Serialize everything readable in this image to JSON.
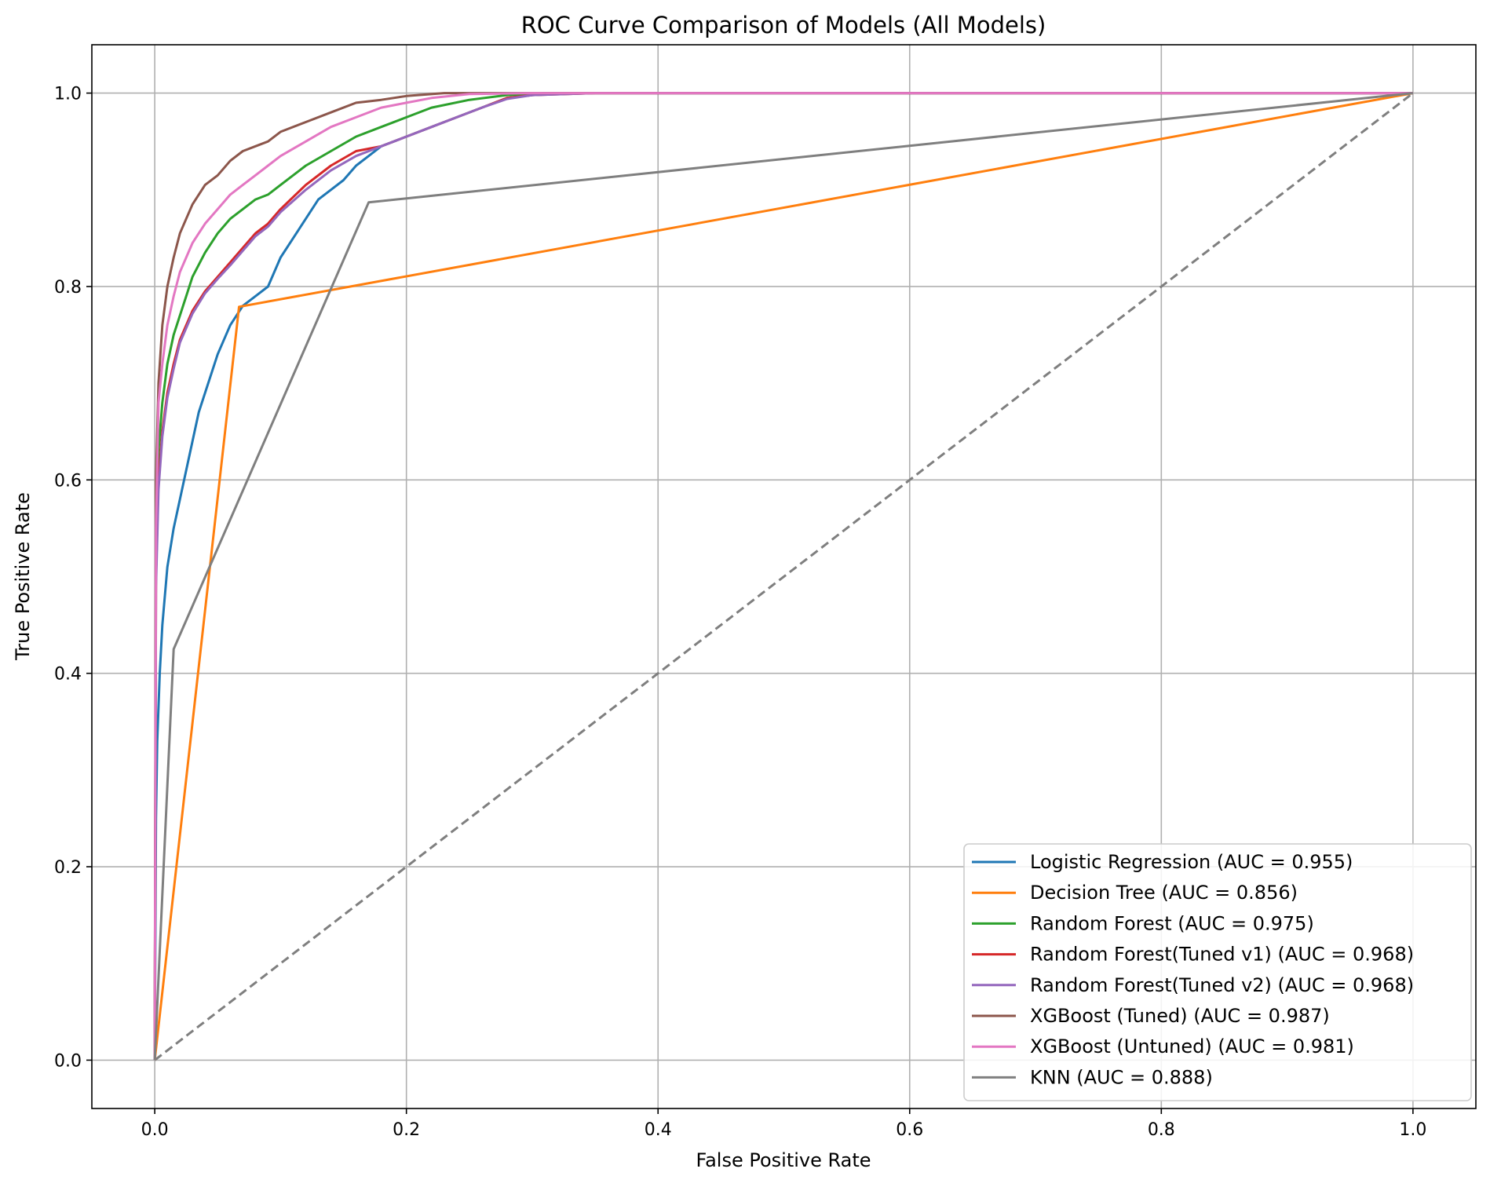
{
  "chart_data": {
    "type": "line",
    "title": "ROC Curve Comparison of Models (All Models)",
    "xlabel": "False Positive Rate",
    "ylabel": "True Positive Rate",
    "xlim": [
      -0.05,
      1.05
    ],
    "ylim": [
      -0.05,
      1.05
    ],
    "x_ticks": [
      0.0,
      0.2,
      0.4,
      0.6,
      0.8,
      1.0
    ],
    "y_ticks": [
      0.0,
      0.2,
      0.4,
      0.6,
      0.8,
      1.0
    ],
    "x_tick_labels": [
      "0.0",
      "0.2",
      "0.4",
      "0.6",
      "0.8",
      "1.0"
    ],
    "y_tick_labels": [
      "0.0",
      "0.2",
      "0.4",
      "0.6",
      "0.8",
      "1.0"
    ],
    "grid": true,
    "legend_position": "lower-right",
    "series": [
      {
        "name": "Logistic Regression (AUC = 0.955)",
        "color": "#1f77b4",
        "x": [
          0.0,
          0.001,
          0.002,
          0.004,
          0.006,
          0.01,
          0.015,
          0.02,
          0.025,
          0.03,
          0.035,
          0.04,
          0.05,
          0.06,
          0.07,
          0.08,
          0.09,
          0.1,
          0.11,
          0.12,
          0.13,
          0.14,
          0.15,
          0.16,
          0.17,
          0.18,
          0.19,
          0.2,
          0.22,
          0.24,
          0.26,
          0.28,
          0.3,
          0.32,
          0.35,
          1.0
        ],
        "y": [
          0.0,
          0.25,
          0.33,
          0.4,
          0.45,
          0.51,
          0.55,
          0.58,
          0.61,
          0.64,
          0.67,
          0.69,
          0.73,
          0.76,
          0.78,
          0.79,
          0.8,
          0.83,
          0.85,
          0.87,
          0.89,
          0.9,
          0.91,
          0.925,
          0.935,
          0.945,
          0.95,
          0.955,
          0.965,
          0.975,
          0.985,
          0.995,
          0.998,
          0.999,
          1.0,
          1.0
        ]
      },
      {
        "name": "Decision Tree (AUC = 0.856)",
        "color": "#ff7f0e",
        "x": [
          0.0,
          0.067,
          1.0
        ],
        "y": [
          0.0,
          0.779,
          1.0
        ]
      },
      {
        "name": "Random Forest (AUC = 0.975)",
        "color": "#2ca02c",
        "x": [
          0.0,
          0.001,
          0.003,
          0.006,
          0.01,
          0.015,
          0.02,
          0.025,
          0.03,
          0.04,
          0.05,
          0.06,
          0.07,
          0.08,
          0.09,
          0.1,
          0.12,
          0.14,
          0.16,
          0.18,
          0.2,
          0.22,
          0.25,
          0.28,
          0.31,
          0.35,
          1.0
        ],
        "y": [
          0.0,
          0.55,
          0.63,
          0.68,
          0.72,
          0.75,
          0.77,
          0.79,
          0.81,
          0.835,
          0.855,
          0.87,
          0.88,
          0.89,
          0.895,
          0.905,
          0.925,
          0.94,
          0.955,
          0.965,
          0.975,
          0.985,
          0.993,
          0.998,
          1.0,
          1.0,
          1.0
        ]
      },
      {
        "name": "Random Forest(Tuned v1) (AUC = 0.968)",
        "color": "#d62728",
        "x": [
          0.0,
          0.001,
          0.003,
          0.006,
          0.01,
          0.015,
          0.02,
          0.03,
          0.04,
          0.05,
          0.06,
          0.07,
          0.08,
          0.09,
          0.1,
          0.12,
          0.14,
          0.16,
          0.18,
          0.2,
          0.22,
          0.24,
          0.26,
          0.28,
          0.3,
          0.35,
          1.0
        ],
        "y": [
          0.0,
          0.5,
          0.6,
          0.65,
          0.69,
          0.72,
          0.745,
          0.775,
          0.795,
          0.81,
          0.825,
          0.84,
          0.855,
          0.865,
          0.88,
          0.905,
          0.925,
          0.94,
          0.945,
          0.955,
          0.965,
          0.975,
          0.985,
          0.995,
          0.998,
          1.0,
          1.0
        ]
      },
      {
        "name": "Random Forest(Tuned v2) (AUC = 0.968)",
        "color": "#9467bd",
        "x": [
          0.0,
          0.001,
          0.003,
          0.006,
          0.01,
          0.015,
          0.02,
          0.03,
          0.04,
          0.05,
          0.06,
          0.07,
          0.08,
          0.09,
          0.1,
          0.12,
          0.14,
          0.16,
          0.18,
          0.2,
          0.22,
          0.24,
          0.26,
          0.28,
          0.3,
          0.35,
          1.0
        ],
        "y": [
          0.0,
          0.49,
          0.59,
          0.645,
          0.685,
          0.715,
          0.742,
          0.772,
          0.793,
          0.808,
          0.822,
          0.837,
          0.852,
          0.862,
          0.877,
          0.9,
          0.92,
          0.935,
          0.945,
          0.955,
          0.965,
          0.975,
          0.985,
          0.994,
          0.998,
          1.0,
          1.0
        ]
      },
      {
        "name": "XGBoost (Tuned) (AUC = 0.987)",
        "color": "#8c564b",
        "x": [
          0.0,
          0.001,
          0.003,
          0.006,
          0.01,
          0.015,
          0.02,
          0.025,
          0.03,
          0.04,
          0.05,
          0.06,
          0.07,
          0.08,
          0.09,
          0.1,
          0.12,
          0.14,
          0.16,
          0.18,
          0.2,
          0.23,
          0.26,
          0.3,
          1.0
        ],
        "y": [
          0.0,
          0.6,
          0.7,
          0.76,
          0.8,
          0.83,
          0.855,
          0.87,
          0.885,
          0.905,
          0.915,
          0.93,
          0.94,
          0.945,
          0.95,
          0.96,
          0.97,
          0.98,
          0.99,
          0.993,
          0.997,
          1.0,
          1.0,
          1.0,
          1.0
        ]
      },
      {
        "name": "XGBoost (Untuned) (AUC = 0.981)",
        "color": "#e377c2",
        "x": [
          0.0,
          0.001,
          0.003,
          0.006,
          0.01,
          0.015,
          0.02,
          0.025,
          0.03,
          0.04,
          0.05,
          0.06,
          0.07,
          0.08,
          0.09,
          0.1,
          0.12,
          0.14,
          0.16,
          0.18,
          0.2,
          0.22,
          0.25,
          0.3,
          1.0
        ],
        "y": [
          0.0,
          0.55,
          0.68,
          0.72,
          0.76,
          0.79,
          0.815,
          0.83,
          0.845,
          0.865,
          0.88,
          0.895,
          0.905,
          0.915,
          0.925,
          0.935,
          0.95,
          0.965,
          0.975,
          0.985,
          0.99,
          0.995,
          0.999,
          1.0,
          1.0
        ]
      },
      {
        "name": "KNN (AUC = 0.888)",
        "color": "#7f7f7f",
        "x": [
          0.0,
          0.015,
          0.17,
          1.0
        ],
        "y": [
          0.0,
          0.425,
          0.887,
          1.0
        ]
      }
    ],
    "reference_line": {
      "color": "#7f7f7f",
      "style": "dashed",
      "x": [
        0.0,
        1.0
      ],
      "y": [
        0.0,
        1.0
      ]
    }
  }
}
